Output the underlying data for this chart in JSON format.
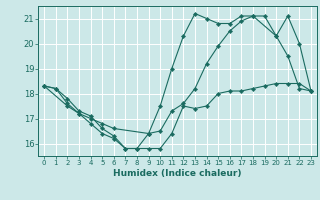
{
  "title": "",
  "xlabel": "Humidex (Indice chaleur)",
  "bg_color": "#cce8e8",
  "line_color": "#1a6b60",
  "grid_color": "#ffffff",
  "xlim": [
    -0.5,
    23.5
  ],
  "ylim": [
    15.5,
    21.5
  ],
  "yticks": [
    16,
    17,
    18,
    19,
    20,
    21
  ],
  "xticks": [
    0,
    1,
    2,
    3,
    4,
    5,
    6,
    7,
    8,
    9,
    10,
    11,
    12,
    13,
    14,
    15,
    16,
    17,
    18,
    19,
    20,
    21,
    22,
    23
  ],
  "line1_x": [
    0,
    1,
    2,
    3,
    4,
    5,
    6,
    7,
    8,
    9,
    10,
    11,
    12,
    13,
    14,
    15,
    16,
    17,
    18,
    19,
    20,
    21,
    22,
    23
  ],
  "line1_y": [
    18.3,
    18.2,
    17.8,
    17.3,
    17.1,
    16.6,
    16.3,
    15.8,
    15.8,
    15.8,
    15.8,
    16.4,
    17.5,
    17.4,
    17.5,
    18.0,
    18.1,
    18.1,
    18.2,
    18.3,
    18.4,
    18.4,
    18.4,
    18.1
  ],
  "line2_x": [
    0,
    2,
    3,
    4,
    5,
    6,
    9,
    10,
    11,
    12,
    13,
    14,
    15,
    16,
    17,
    18,
    20,
    21,
    22,
    23
  ],
  "line2_y": [
    18.3,
    17.5,
    17.2,
    17.0,
    16.8,
    16.6,
    16.4,
    17.5,
    19.0,
    20.3,
    21.2,
    21.0,
    20.8,
    20.8,
    21.1,
    21.1,
    20.3,
    21.1,
    20.0,
    18.1
  ],
  "line3_x": [
    0,
    1,
    2,
    3,
    4,
    5,
    6,
    7,
    8,
    9,
    10,
    11,
    12,
    13,
    14,
    15,
    16,
    17,
    18,
    19,
    20,
    21,
    22,
    23
  ],
  "line3_y": [
    18.3,
    18.2,
    17.6,
    17.2,
    16.8,
    16.4,
    16.2,
    15.8,
    15.8,
    16.4,
    16.5,
    17.3,
    17.6,
    18.2,
    19.2,
    19.9,
    20.5,
    20.9,
    21.1,
    21.1,
    20.3,
    19.5,
    18.2,
    18.1
  ]
}
